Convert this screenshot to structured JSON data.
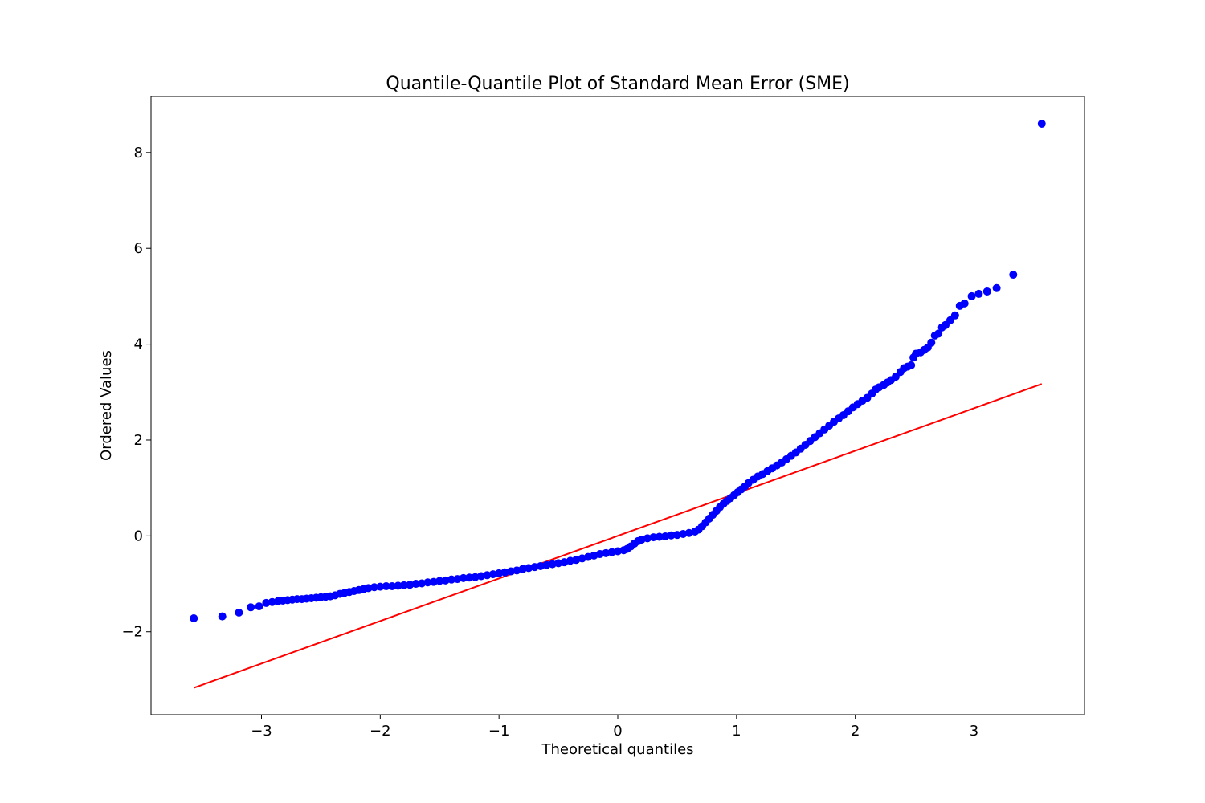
{
  "chart_data": {
    "type": "scatter",
    "title": "Quantile-Quantile Plot of Standard Mean Error (SME)",
    "xlabel": "Theoretical quantiles",
    "ylabel": "Ordered Values",
    "xlim": [
      -3.93,
      3.93
    ],
    "ylim": [
      -3.73,
      9.17
    ],
    "xticks": [
      -3,
      -2,
      -1,
      0,
      1,
      2,
      3
    ],
    "xtick_labels": [
      "−3",
      "−2",
      "−1",
      "0",
      "1",
      "2",
      "3"
    ],
    "yticks": [
      -2,
      0,
      2,
      4,
      6,
      8
    ],
    "ytick_labels": [
      "−2",
      "0",
      "2",
      "4",
      "6",
      "8"
    ],
    "grid": false,
    "colors": {
      "points": "#0000ff",
      "fit_line": "#ff0000"
    },
    "series": [
      {
        "type": "scatter",
        "points": [
          [
            -3.57,
            -1.72
          ],
          [
            -3.33,
            -1.68
          ],
          [
            -3.19,
            -1.6
          ],
          [
            -3.09,
            -1.49
          ],
          [
            -3.02,
            -1.47
          ],
          [
            -2.96,
            -1.4
          ],
          [
            -2.91,
            -1.38
          ],
          [
            -2.86,
            -1.36
          ],
          [
            -2.82,
            -1.35
          ],
          [
            -2.78,
            -1.34
          ],
          [
            -2.74,
            -1.33
          ],
          [
            -2.7,
            -1.32
          ],
          [
            -2.66,
            -1.32
          ],
          [
            -2.62,
            -1.31
          ],
          [
            -2.58,
            -1.3
          ],
          [
            -2.54,
            -1.29
          ],
          [
            -2.5,
            -1.28
          ],
          [
            -2.46,
            -1.27
          ],
          [
            -2.42,
            -1.26
          ],
          [
            -2.38,
            -1.24
          ],
          [
            -2.34,
            -1.21
          ],
          [
            -2.3,
            -1.19
          ],
          [
            -2.26,
            -1.17
          ],
          [
            -2.22,
            -1.15
          ],
          [
            -2.18,
            -1.13
          ],
          [
            -2.14,
            -1.11
          ],
          [
            -2.1,
            -1.09
          ],
          [
            -2.05,
            -1.07
          ],
          [
            -2.0,
            -1.06
          ],
          [
            -1.95,
            -1.05
          ],
          [
            -1.9,
            -1.05
          ],
          [
            -1.85,
            -1.04
          ],
          [
            -1.8,
            -1.03
          ],
          [
            -1.75,
            -1.02
          ],
          [
            -1.7,
            -1.0
          ],
          [
            -1.65,
            -0.99
          ],
          [
            -1.6,
            -0.97
          ],
          [
            -1.55,
            -0.96
          ],
          [
            -1.5,
            -0.94
          ],
          [
            -1.45,
            -0.93
          ],
          [
            -1.4,
            -0.91
          ],
          [
            -1.35,
            -0.9
          ],
          [
            -1.3,
            -0.88
          ],
          [
            -1.25,
            -0.87
          ],
          [
            -1.2,
            -0.86
          ],
          [
            -1.15,
            -0.84
          ],
          [
            -1.1,
            -0.82
          ],
          [
            -1.05,
            -0.8
          ],
          [
            -1.0,
            -0.78
          ],
          [
            -0.95,
            -0.76
          ],
          [
            -0.9,
            -0.74
          ],
          [
            -0.85,
            -0.72
          ],
          [
            -0.8,
            -0.69
          ],
          [
            -0.75,
            -0.67
          ],
          [
            -0.7,
            -0.65
          ],
          [
            -0.65,
            -0.63
          ],
          [
            -0.6,
            -0.61
          ],
          [
            -0.55,
            -0.59
          ],
          [
            -0.5,
            -0.57
          ],
          [
            -0.45,
            -0.55
          ],
          [
            -0.4,
            -0.52
          ],
          [
            -0.35,
            -0.5
          ],
          [
            -0.3,
            -0.47
          ],
          [
            -0.25,
            -0.44
          ],
          [
            -0.2,
            -0.41
          ],
          [
            -0.15,
            -0.38
          ],
          [
            -0.1,
            -0.36
          ],
          [
            -0.05,
            -0.34
          ],
          [
            0.0,
            -0.32
          ],
          [
            0.05,
            -0.3
          ],
          [
            0.08,
            -0.27
          ],
          [
            0.11,
            -0.22
          ],
          [
            0.14,
            -0.16
          ],
          [
            0.17,
            -0.11
          ],
          [
            0.2,
            -0.08
          ],
          [
            0.25,
            -0.05
          ],
          [
            0.3,
            -0.03
          ],
          [
            0.35,
            -0.02
          ],
          [
            0.4,
            -0.01
          ],
          [
            0.45,
            0.01
          ],
          [
            0.5,
            0.02
          ],
          [
            0.55,
            0.04
          ],
          [
            0.6,
            0.06
          ],
          [
            0.65,
            0.09
          ],
          [
            0.68,
            0.13
          ],
          [
            0.71,
            0.2
          ],
          [
            0.74,
            0.28
          ],
          [
            0.77,
            0.36
          ],
          [
            0.8,
            0.44
          ],
          [
            0.83,
            0.52
          ],
          [
            0.86,
            0.6
          ],
          [
            0.89,
            0.67
          ],
          [
            0.92,
            0.73
          ],
          [
            0.95,
            0.79
          ],
          [
            0.98,
            0.85
          ],
          [
            1.01,
            0.91
          ],
          [
            1.04,
            0.97
          ],
          [
            1.07,
            1.03
          ],
          [
            1.1,
            1.1
          ],
          [
            1.14,
            1.17
          ],
          [
            1.18,
            1.24
          ],
          [
            1.22,
            1.29
          ],
          [
            1.26,
            1.35
          ],
          [
            1.3,
            1.41
          ],
          [
            1.34,
            1.47
          ],
          [
            1.38,
            1.53
          ],
          [
            1.42,
            1.6
          ],
          [
            1.46,
            1.67
          ],
          [
            1.5,
            1.74
          ],
          [
            1.54,
            1.82
          ],
          [
            1.58,
            1.9
          ],
          [
            1.62,
            1.98
          ],
          [
            1.66,
            2.06
          ],
          [
            1.7,
            2.14
          ],
          [
            1.74,
            2.22
          ],
          [
            1.78,
            2.3
          ],
          [
            1.82,
            2.38
          ],
          [
            1.86,
            2.45
          ],
          [
            1.9,
            2.52
          ],
          [
            1.94,
            2.6
          ],
          [
            1.98,
            2.68
          ],
          [
            2.02,
            2.75
          ],
          [
            2.06,
            2.82
          ],
          [
            2.1,
            2.88
          ],
          [
            2.14,
            2.97
          ],
          [
            2.17,
            3.05
          ],
          [
            2.2,
            3.1
          ],
          [
            2.24,
            3.15
          ],
          [
            2.27,
            3.2
          ],
          [
            2.3,
            3.25
          ],
          [
            2.34,
            3.32
          ],
          [
            2.38,
            3.42
          ],
          [
            2.41,
            3.5
          ],
          [
            2.44,
            3.53
          ],
          [
            2.47,
            3.56
          ],
          [
            2.49,
            3.72
          ],
          [
            2.51,
            3.8
          ],
          [
            2.55,
            3.83
          ],
          [
            2.58,
            3.88
          ],
          [
            2.61,
            3.93
          ],
          [
            2.64,
            4.03
          ],
          [
            2.67,
            4.18
          ],
          [
            2.7,
            4.22
          ],
          [
            2.73,
            4.35
          ],
          [
            2.76,
            4.4
          ],
          [
            2.8,
            4.5
          ],
          [
            2.84,
            4.6
          ],
          [
            2.88,
            4.8
          ],
          [
            2.92,
            4.85
          ],
          [
            2.98,
            5.0
          ],
          [
            3.04,
            5.05
          ],
          [
            3.11,
            5.1
          ],
          [
            3.19,
            5.17
          ],
          [
            3.33,
            5.45
          ],
          [
            3.57,
            8.6
          ]
        ]
      },
      {
        "type": "line",
        "points": [
          [
            -3.57,
            -3.17
          ],
          [
            3.57,
            3.17
          ]
        ]
      }
    ]
  }
}
